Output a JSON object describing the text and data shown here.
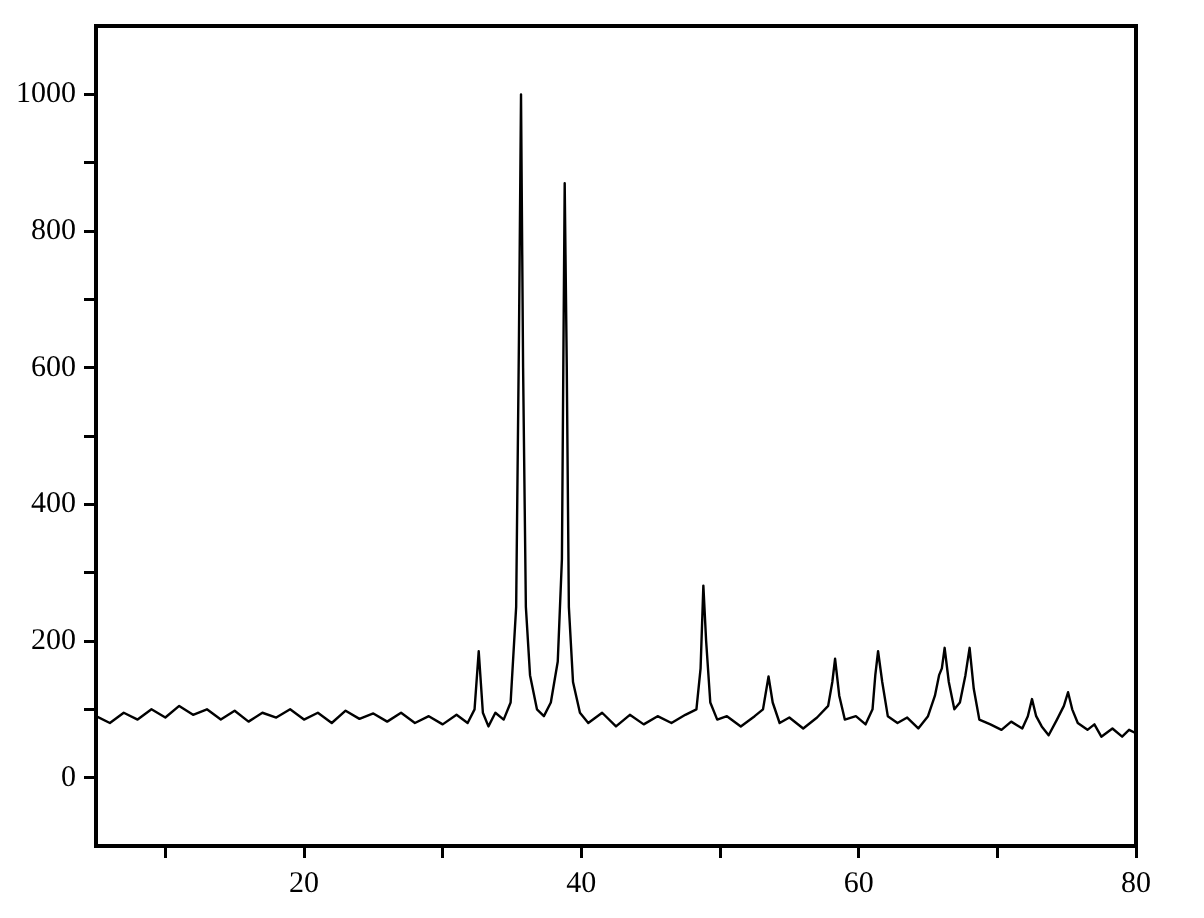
{
  "chart_data": {
    "type": "line",
    "xlim": [
      5,
      80
    ],
    "ylim": [
      -100,
      1100
    ],
    "xticks": [
      {
        "value": 10,
        "label": null
      },
      20,
      {
        "value": 30,
        "label": null
      },
      40,
      {
        "value": 50,
        "label": null
      },
      60,
      {
        "value": 70,
        "label": null
      },
      80
    ],
    "yticks": [
      0,
      {
        "value": 100,
        "label": null
      },
      200,
      {
        "value": 300,
        "label": null
      },
      400,
      {
        "value": 500,
        "label": null
      },
      600,
      {
        "value": 700,
        "label": null
      },
      800,
      {
        "value": 900,
        "label": null
      },
      1000
    ],
    "marker": "none",
    "line_style": "solid",
    "series": [
      {
        "color": "#000000",
        "x": [
          5,
          6,
          7,
          8,
          9,
          10,
          11,
          12,
          13,
          14,
          15,
          16,
          17,
          18,
          19,
          20,
          21,
          22,
          23,
          24,
          25,
          26,
          27,
          28,
          29,
          30,
          31,
          31.8,
          32.3,
          32.6,
          32.9,
          33.3,
          33.8,
          34.4,
          34.9,
          35.3,
          35.5,
          35.65,
          35.8,
          36.0,
          36.3,
          36.8,
          37.3,
          37.8,
          38.3,
          38.6,
          38.7,
          38.8,
          38.95,
          39.1,
          39.4,
          39.9,
          40.5,
          41.5,
          42.5,
          43.5,
          44.5,
          45.5,
          46.5,
          47.5,
          48.3,
          48.6,
          48.8,
          49.0,
          49.3,
          49.8,
          50.5,
          51.5,
          52.5,
          53.1,
          53.5,
          53.8,
          54.3,
          55,
          56,
          57,
          57.8,
          58.1,
          58.3,
          58.6,
          59,
          59.8,
          60.5,
          61.0,
          61.2,
          61.4,
          61.7,
          62.1,
          62.8,
          63.5,
          64.3,
          65.0,
          65.5,
          65.8,
          66.0,
          66.2,
          66.5,
          66.9,
          67.3,
          67.7,
          68.0,
          68.3,
          68.7,
          69.5,
          70.3,
          71,
          71.8,
          72.2,
          72.5,
          72.8,
          73.2,
          73.7,
          74.3,
          74.8,
          75.1,
          75.4,
          75.8,
          76.5,
          77,
          77.5,
          78.3,
          79,
          79.5,
          80
        ],
        "values": [
          90,
          80,
          95,
          85,
          100,
          88,
          105,
          92,
          100,
          85,
          98,
          82,
          95,
          88,
          100,
          85,
          95,
          80,
          98,
          86,
          94,
          82,
          95,
          80,
          90,
          78,
          92,
          80,
          100,
          185,
          95,
          75,
          95,
          85,
          110,
          250,
          640,
          1000,
          600,
          250,
          150,
          100,
          90,
          110,
          170,
          320,
          600,
          870,
          600,
          250,
          140,
          95,
          80,
          95,
          75,
          92,
          78,
          90,
          80,
          92,
          100,
          160,
          281,
          200,
          110,
          85,
          90,
          75,
          90,
          100,
          148,
          110,
          80,
          88,
          72,
          88,
          105,
          140,
          174,
          120,
          85,
          90,
          78,
          100,
          150,
          185,
          140,
          90,
          80,
          88,
          72,
          90,
          120,
          150,
          160,
          190,
          140,
          100,
          110,
          150,
          190,
          130,
          85,
          78,
          70,
          82,
          72,
          90,
          115,
          90,
          75,
          62,
          85,
          105,
          125,
          100,
          80,
          70,
          78,
          60,
          72,
          60,
          70,
          65
        ]
      }
    ]
  }
}
